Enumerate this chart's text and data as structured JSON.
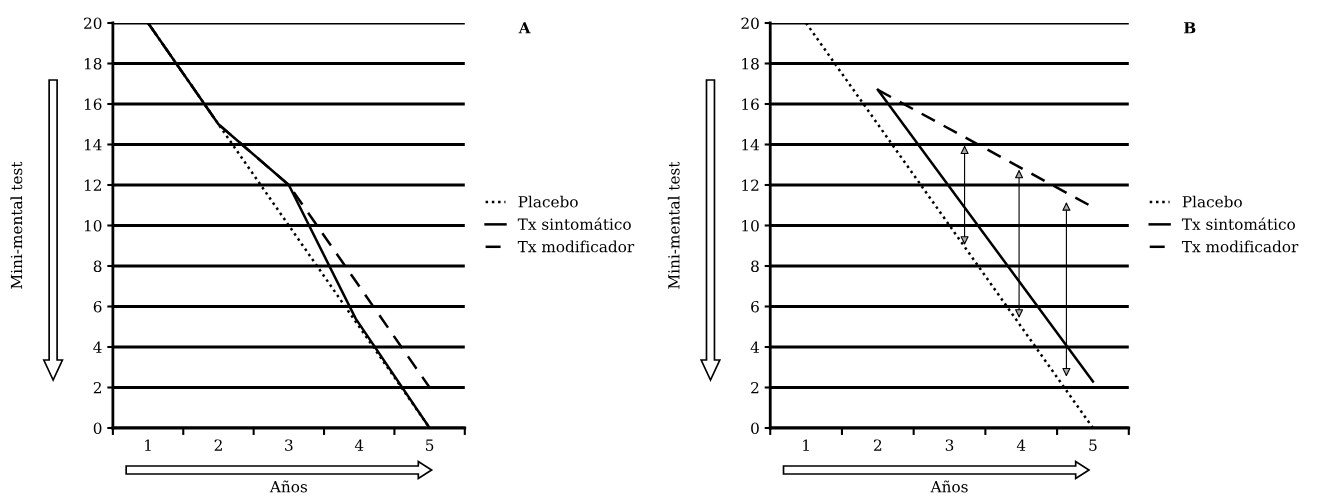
{
  "chart_data": [
    {
      "type": "line",
      "ylabel": "Mini-mental test",
      "xlabel": "Años",
      "annotations": [
        "A"
      ],
      "xlim": [
        0.5,
        5.5
      ],
      "ylim": [
        0,
        20
      ],
      "xticks": [
        {
          "value": 0.5,
          "label": null
        },
        {
          "value": 1,
          "label": "1"
        },
        {
          "value": 1.5,
          "label": null
        },
        {
          "value": 2,
          "label": "2"
        },
        {
          "value": 2.5,
          "label": null
        },
        {
          "value": 3,
          "label": "3"
        },
        {
          "value": 3.5,
          "label": null
        },
        {
          "value": 4,
          "label": "4"
        },
        {
          "value": 4.5,
          "label": null
        },
        {
          "value": 5,
          "label": "5"
        },
        {
          "value": 5.5,
          "label": null
        }
      ],
      "yticks": [
        0,
        2,
        4,
        6,
        8,
        10,
        12,
        14,
        16,
        18,
        20
      ],
      "grid": "y",
      "legend": "right",
      "series": [
        {
          "name": "Placebo",
          "color": "#000000",
          "line_style": "dotted",
          "x": [
            1,
            2,
            3,
            4,
            5
          ],
          "values": [
            20,
            15,
            10,
            5,
            0
          ]
        },
        {
          "name": "Tx sintomático",
          "color": "#000000",
          "line_style": "solid",
          "x": [
            1,
            2,
            3,
            3.95,
            5
          ],
          "values": [
            20,
            15,
            12,
            5.4,
            0
          ]
        },
        {
          "name": "Tx modificador",
          "color": "#000000",
          "line_style": "dashed",
          "x": [
            1,
            2,
            3,
            5
          ],
          "values": [
            20,
            15,
            12,
            2
          ]
        }
      ]
    },
    {
      "type": "line",
      "ylabel": "Mini-mental test",
      "xlabel": "Años",
      "annotations": [
        "B"
      ],
      "xlim": [
        0.5,
        5.5
      ],
      "ylim": [
        0,
        20
      ],
      "xticks": [
        {
          "value": 0.5,
          "label": null
        },
        {
          "value": 1,
          "label": "1"
        },
        {
          "value": 1.5,
          "label": null
        },
        {
          "value": 2,
          "label": "2"
        },
        {
          "value": 2.5,
          "label": null
        },
        {
          "value": 3,
          "label": "3"
        },
        {
          "value": 3.5,
          "label": null
        },
        {
          "value": 4,
          "label": "4"
        },
        {
          "value": 4.5,
          "label": null
        },
        {
          "value": 5,
          "label": "5"
        },
        {
          "value": 5.5,
          "label": null
        }
      ],
      "yticks": [
        0,
        2,
        4,
        6,
        8,
        10,
        12,
        14,
        16,
        18,
        20
      ],
      "grid": "y",
      "legend": "right",
      "series": [
        {
          "name": "Placebo",
          "color": "#000000",
          "line_style": "dotted",
          "x": [
            1,
            5
          ],
          "values": [
            20,
            0
          ]
        },
        {
          "name": "Tx sintomático",
          "color": "#000000",
          "line_style": "solid",
          "x": [
            2,
            5
          ],
          "values": [
            16.7,
            2.3
          ]
        },
        {
          "name": "Tx modificador",
          "color": "#000000",
          "line_style": "dashed",
          "x": [
            2,
            4.95
          ],
          "values": [
            16.7,
            11
          ]
        }
      ]
    }
  ]
}
